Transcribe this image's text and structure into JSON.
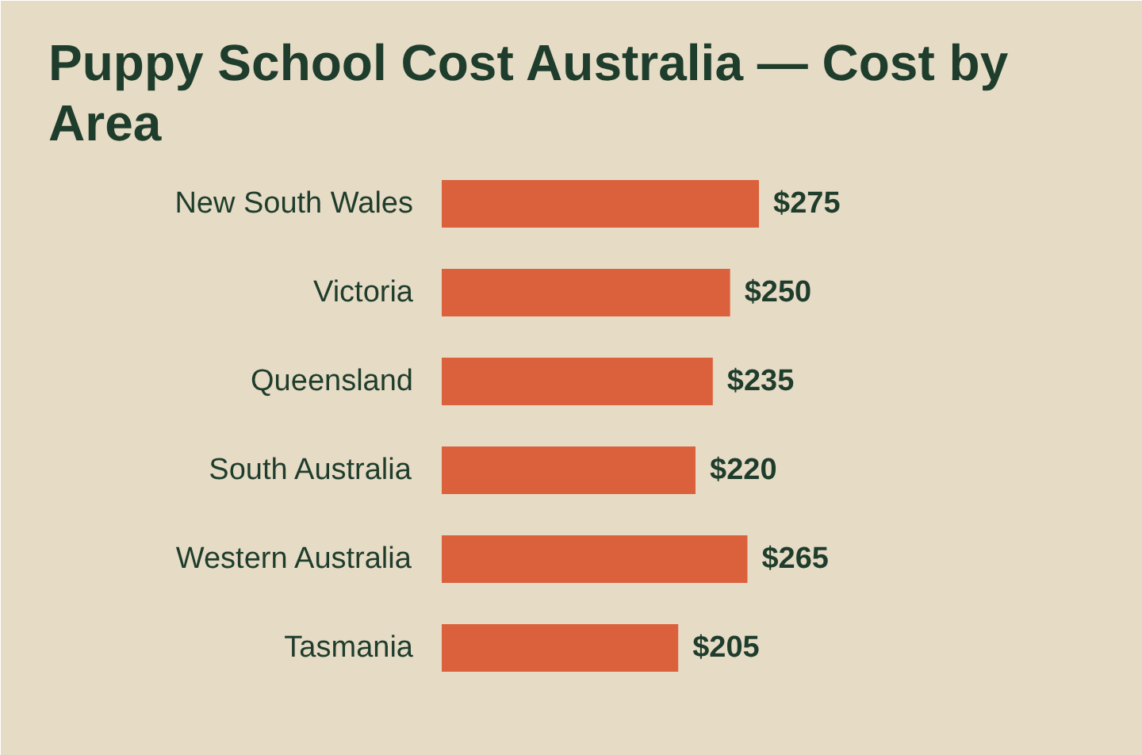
{
  "chart_data": {
    "type": "bar",
    "title": "Puppy School Cost Australia — Cost by Area",
    "orientation": "horizontal",
    "categories": [
      "New South Wales",
      "Victoria",
      "Queensland",
      "South Australia",
      "Western Australia",
      "Tasmania"
    ],
    "values": [
      275,
      250,
      235,
      220,
      265,
      205
    ],
    "color": "#db613d",
    "value_labels": [
      "$275",
      "$250",
      "$235",
      "$220",
      "$265",
      "$205"
    ],
    "tick_labels": "y"
  }
}
